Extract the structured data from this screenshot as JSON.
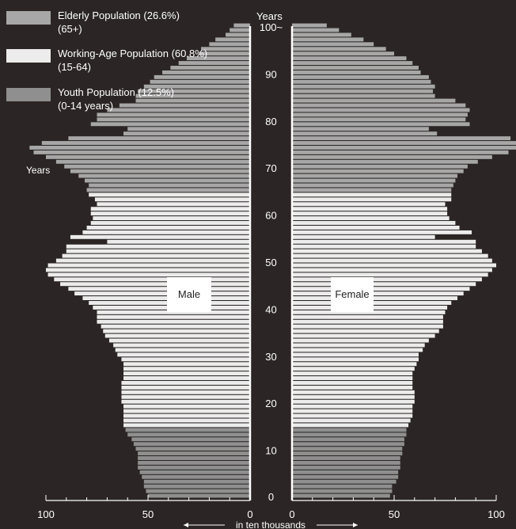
{
  "colors": {
    "background": "#2b2625",
    "elderly": "#a7a7a7",
    "working": "#ececec",
    "youth": "#8f8f8f",
    "axis": "#ffffff"
  },
  "legend": [
    {
      "label": "Elderly Population (26.6%)\n(65+)",
      "color": "#a7a7a7"
    },
    {
      "label": "Working-Age Population (60.8%)\n(15-64)",
      "color": "#ececec"
    },
    {
      "label": "Youth Population (12.5%)\n(0-14 years)",
      "color": "#8f8f8f"
    }
  ],
  "labels": {
    "years_top": "Years",
    "hundred": "100~",
    "years_left": "Years",
    "male": "Male",
    "female": "Female",
    "x_axis": "in ten thousands"
  },
  "chart_data": {
    "type": "bar",
    "orientation": "horizontal-population-pyramid",
    "unit": "ten thousands",
    "x_ticks_left": [
      "100",
      "50",
      "0"
    ],
    "x_ticks_right": [
      "0",
      "50",
      "100"
    ],
    "y_ticks": [
      "0",
      "10",
      "20",
      "30",
      "40",
      "50",
      "60",
      "70",
      "80",
      "90",
      "100~"
    ],
    "xlim": [
      0,
      100
    ],
    "ages": [
      0,
      1,
      2,
      3,
      4,
      5,
      6,
      7,
      8,
      9,
      10,
      11,
      12,
      13,
      14,
      15,
      16,
      17,
      18,
      19,
      20,
      21,
      22,
      23,
      24,
      25,
      26,
      27,
      28,
      29,
      30,
      31,
      32,
      33,
      34,
      35,
      36,
      37,
      38,
      39,
      40,
      41,
      42,
      43,
      44,
      45,
      46,
      47,
      48,
      49,
      50,
      51,
      52,
      53,
      54,
      55,
      56,
      57,
      58,
      59,
      60,
      61,
      62,
      63,
      64,
      65,
      66,
      67,
      68,
      69,
      70,
      71,
      72,
      73,
      74,
      75,
      76,
      77,
      78,
      79,
      80,
      81,
      82,
      83,
      84,
      85,
      86,
      87,
      88,
      89,
      90,
      91,
      92,
      93,
      94,
      95,
      96,
      97,
      98,
      99,
      100
    ],
    "groups": [
      {
        "name": "Youth Population (12.5%)",
        "from_age": 0,
        "to_age": 14
      },
      {
        "name": "Working-Age Population (60.8%)",
        "from_age": 15,
        "to_age": 64
      },
      {
        "name": "Elderly Population (26.6%)",
        "from_age": 65,
        "to_age": 100
      }
    ],
    "series": [
      {
        "name": "Male",
        "values": [
          50,
          51,
          52,
          52,
          53,
          54,
          55,
          55,
          55,
          55,
          56,
          57,
          58,
          60,
          61,
          62,
          62,
          62,
          62,
          62,
          63,
          63,
          63,
          63,
          63,
          62,
          62,
          62,
          62,
          63,
          65,
          66,
          67,
          69,
          71,
          72,
          73,
          75,
          75,
          75,
          77,
          79,
          82,
          86,
          89,
          93,
          96,
          99,
          100,
          99,
          95,
          92,
          90,
          90,
          70,
          88,
          82,
          80,
          78,
          77,
          78,
          78,
          75,
          76,
          79,
          80,
          79,
          81,
          84,
          88,
          91,
          95,
          100,
          106,
          108,
          102,
          89,
          62,
          60,
          78,
          75,
          75,
          70,
          64,
          56,
          56,
          55,
          52,
          49,
          47,
          43,
          39,
          35,
          31,
          25,
          24,
          20,
          17,
          12,
          10,
          8
        ]
      },
      {
        "name": "Female",
        "values": [
          48,
          49,
          49,
          51,
          52,
          52,
          53,
          53,
          53,
          54,
          54,
          55,
          55,
          56,
          56,
          57,
          58,
          59,
          59,
          59,
          60,
          60,
          60,
          59,
          59,
          59,
          59,
          60,
          61,
          62,
          62,
          64,
          65,
          67,
          70,
          72,
          74,
          74,
          74,
          75,
          76,
          78,
          81,
          84,
          87,
          90,
          93,
          96,
          98,
          100,
          98,
          96,
          93,
          90,
          90,
          70,
          88,
          82,
          80,
          77,
          76,
          76,
          75,
          78,
          78,
          78,
          79,
          80,
          81,
          84,
          86,
          91,
          98,
          106,
          113,
          113,
          107,
          71,
          67,
          87,
          85,
          86,
          87,
          85,
          80,
          70,
          69,
          70,
          68,
          67,
          63,
          62,
          59,
          56,
          50,
          46,
          40,
          35,
          29,
          23,
          17
        ]
      }
    ]
  }
}
